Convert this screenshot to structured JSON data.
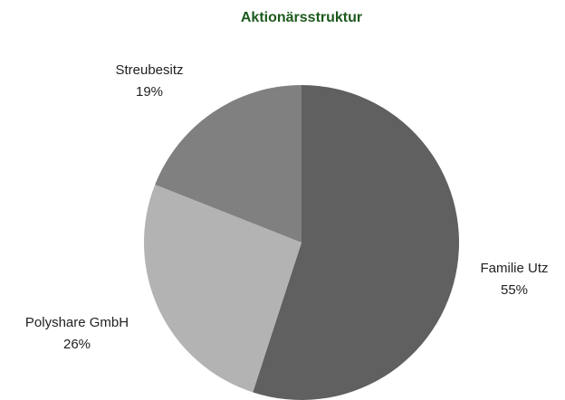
{
  "chart_data": {
    "type": "pie",
    "title": "Aktionärsstruktur",
    "categories": [
      "Familie Utz",
      "Polyshare GmbH",
      "Streubesitz"
    ],
    "values": [
      55,
      26,
      19
    ],
    "value_labels": [
      "55%",
      "26%",
      "19%"
    ],
    "colors": [
      "#606060",
      "#b3b3b3",
      "#808080"
    ]
  }
}
